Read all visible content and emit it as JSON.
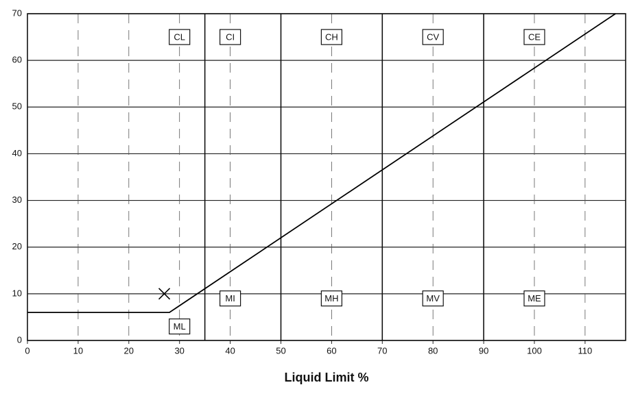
{
  "chart_data": {
    "type": "scatter",
    "xlabel": "Liquid Limit %",
    "xlim": [
      0,
      118
    ],
    "ylim": [
      0,
      70
    ],
    "xticks": [
      0,
      10,
      20,
      30,
      40,
      50,
      60,
      70,
      80,
      90,
      100,
      110
    ],
    "yticks": [
      0,
      10,
      20,
      30,
      40,
      50,
      60,
      70
    ],
    "grid": true,
    "boundaries": [
      35,
      50,
      70,
      90
    ],
    "lines": [
      {
        "x": [
          0,
          28,
          116
        ],
        "values": [
          6,
          6,
          70
        ],
        "color": "#000000"
      }
    ],
    "points": {
      "x": [
        27
      ],
      "values": [
        10
      ],
      "color": "#000000"
    },
    "annotations": [
      {
        "text": "CL",
        "x": 30,
        "y": 65
      },
      {
        "text": "CI",
        "x": 40,
        "y": 65
      },
      {
        "text": "CH",
        "x": 60,
        "y": 65
      },
      {
        "text": "CV",
        "x": 80,
        "y": 65
      },
      {
        "text": "CE",
        "x": 100,
        "y": 65
      },
      {
        "text": "ML",
        "x": 30,
        "y": 3
      },
      {
        "text": "MI",
        "x": 40,
        "y": 9
      },
      {
        "text": "MH",
        "x": 60,
        "y": 9
      },
      {
        "text": "MV",
        "x": 80,
        "y": 9
      },
      {
        "text": "ME",
        "x": 100,
        "y": 9
      }
    ]
  }
}
